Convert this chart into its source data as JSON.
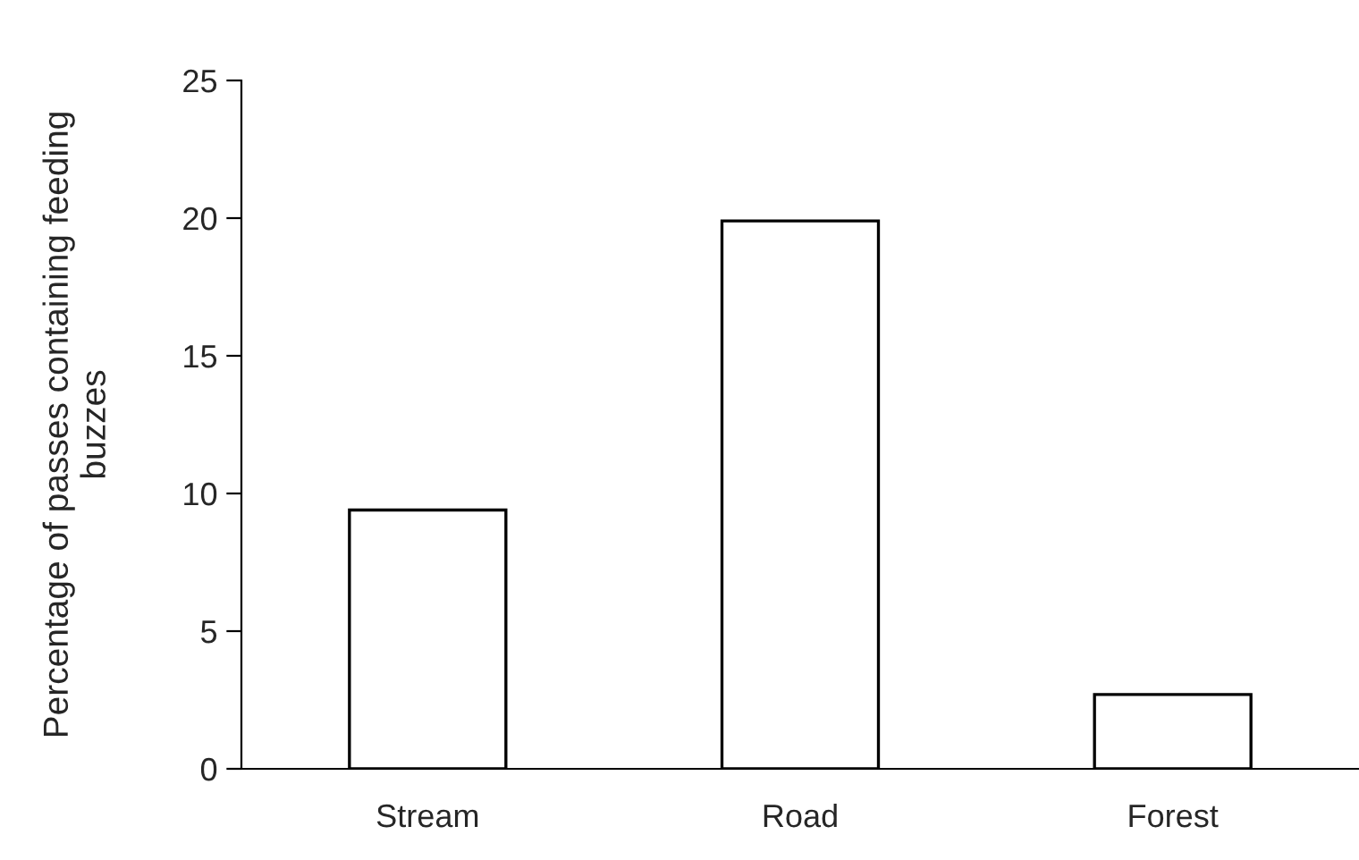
{
  "chart_data": {
    "type": "bar",
    "ylabel": "Percentage of passes containing feeding\nbuzzes",
    "categories": [
      "Stream",
      "Road",
      "Forest"
    ],
    "values": [
      9.4,
      19.9,
      2.7
    ],
    "color": "#ffffff",
    "ylim": [
      0,
      25
    ],
    "yticks": [
      0,
      5,
      10,
      15,
      20,
      25
    ],
    "grid": false,
    "legend": false
  }
}
